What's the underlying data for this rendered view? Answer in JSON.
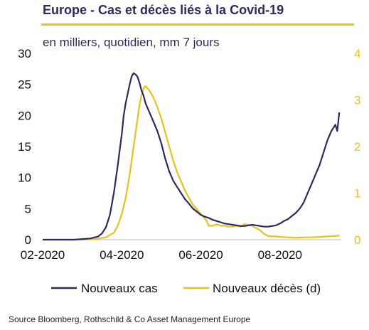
{
  "title": "Europe - Cas et décès liés à la Covid-19",
  "subtitle": "en milliers, quotidien, mm 7 jours",
  "source": "Source Bloomberg, Rothschild  & Co Asset Management Europe",
  "colors": {
    "cases": "#2d2a5e",
    "deaths": "#e8c21c",
    "title": "#2d2a5e",
    "right_axis": "#e8c21c"
  },
  "chart_data": {
    "type": "line",
    "x_tick_labels": [
      "02-2020",
      "04-2020",
      "06-2020",
      "08-2020"
    ],
    "x_tick_values": [
      1,
      3,
      5,
      7
    ],
    "xlim": [
      1,
      8.55
    ],
    "ylim_left": [
      0,
      30
    ],
    "ylim_right": [
      0,
      4
    ],
    "left_tick_labels": [
      "0",
      "5",
      "10",
      "15",
      "20",
      "25",
      "30"
    ],
    "right_tick_labels": [
      "0",
      "1",
      "2",
      "3",
      "4"
    ],
    "legend_placement": "bottom",
    "series": [
      {
        "name": "Nouveaux cas",
        "axis": "left",
        "x": [
          1,
          1.4,
          1.8,
          2.0,
          2.2,
          2.4,
          2.5,
          2.6,
          2.7,
          2.8,
          2.9,
          3.0,
          3.05,
          3.1,
          3.2,
          3.25,
          3.3,
          3.35,
          3.4,
          3.45,
          3.5,
          3.55,
          3.6,
          3.7,
          3.8,
          3.9,
          4.0,
          4.1,
          4.2,
          4.3,
          4.4,
          4.5,
          4.6,
          4.7,
          4.8,
          4.9,
          5.0,
          5.1,
          5.2,
          5.3,
          5.4,
          5.5,
          5.6,
          5.7,
          5.8,
          5.9,
          6.0,
          6.1,
          6.2,
          6.3,
          6.4,
          6.5,
          6.6,
          6.7,
          6.8,
          6.9,
          7.0,
          7.1,
          7.2,
          7.3,
          7.4,
          7.5,
          7.6,
          7.7,
          7.8,
          7.9,
          8.0,
          8.1,
          8.2,
          8.3,
          8.4,
          8.45,
          8.5
        ],
        "values": [
          0,
          0,
          0,
          0.1,
          0.2,
          0.5,
          1.0,
          2.0,
          4.0,
          7.5,
          12.0,
          17.0,
          20.0,
          22.0,
          25.0,
          26.3,
          26.8,
          26.6,
          26.2,
          25.2,
          24.0,
          23.2,
          22.0,
          20.5,
          19.0,
          17.5,
          15.5,
          13.0,
          11.0,
          9.5,
          8.5,
          7.5,
          6.5,
          5.8,
          5.0,
          4.5,
          4.0,
          3.7,
          3.5,
          3.2,
          3.0,
          2.8,
          2.6,
          2.5,
          2.4,
          2.3,
          2.2,
          2.2,
          2.3,
          2.4,
          2.3,
          2.2,
          2.1,
          2.1,
          2.2,
          2.3,
          2.6,
          3.0,
          3.3,
          3.8,
          4.3,
          5.0,
          6.0,
          7.5,
          9.0,
          10.5,
          12.0,
          14.0,
          16.0,
          17.5,
          18.5,
          17.5,
          20.5
        ]
      },
      {
        "name": "Nouveaux décès (d)",
        "axis": "right",
        "x": [
          1,
          1.6,
          2.0,
          2.4,
          2.6,
          2.8,
          2.9,
          3.0,
          3.1,
          3.2,
          3.3,
          3.4,
          3.45,
          3.5,
          3.55,
          3.6,
          3.7,
          3.8,
          3.9,
          4.0,
          4.1,
          4.2,
          4.3,
          4.4,
          4.5,
          4.6,
          4.7,
          4.8,
          4.9,
          5.0,
          5.1,
          5.15,
          5.2,
          5.3,
          5.4,
          5.5,
          5.6,
          5.7,
          5.8,
          5.9,
          6.0,
          6.1,
          6.2,
          6.3,
          6.4,
          6.5,
          6.6,
          6.7,
          6.8,
          6.9,
          7.0,
          7.2,
          7.4,
          7.6,
          7.8,
          8.0,
          8.2,
          8.4,
          8.5
        ],
        "values": [
          0,
          0,
          0,
          0.02,
          0.05,
          0.15,
          0.3,
          0.55,
          0.9,
          1.4,
          2.0,
          2.6,
          2.9,
          3.1,
          3.25,
          3.3,
          3.2,
          3.05,
          2.85,
          2.6,
          2.3,
          2.0,
          1.7,
          1.45,
          1.25,
          1.05,
          0.9,
          0.75,
          0.65,
          0.55,
          0.45,
          0.4,
          0.3,
          0.3,
          0.33,
          0.3,
          0.3,
          0.28,
          0.28,
          0.3,
          0.28,
          0.33,
          0.32,
          0.3,
          0.25,
          0.2,
          0.12,
          0.08,
          0.07,
          0.07,
          0.06,
          0.05,
          0.04,
          0.05,
          0.05,
          0.06,
          0.07,
          0.08,
          0.09
        ]
      }
    ]
  }
}
